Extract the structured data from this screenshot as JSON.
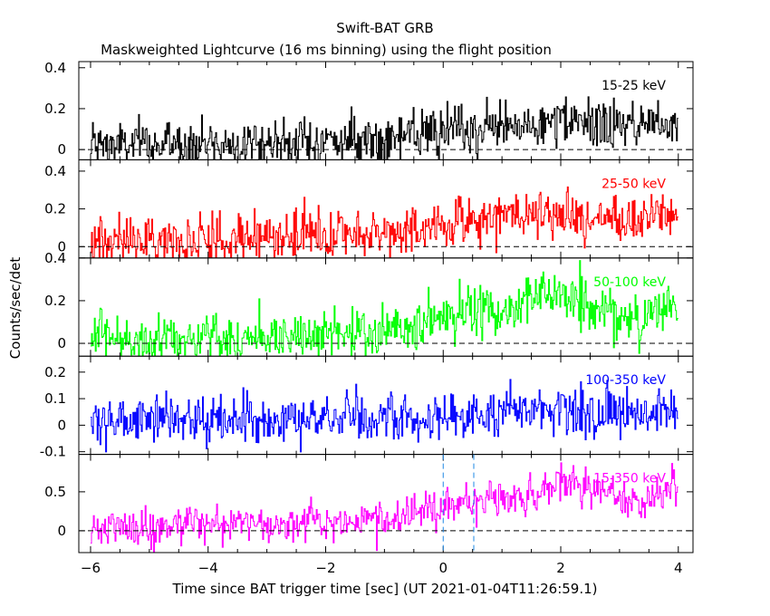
{
  "chart_data": {
    "type": "line",
    "title": "Swift-BAT GRB",
    "subtitle": "Maskweighted Lightcurve (16 ms binning) using the flight position",
    "xlabel": "Time since BAT trigger time [sec] (UT 2021-01-04T11:26:59.1)",
    "ylabel": "Counts/sec/det",
    "xlim": [
      -6.2,
      4.25
    ],
    "x_ticks": [
      -6,
      -4,
      -2,
      0,
      2,
      4
    ],
    "bin_width_s": 0.016,
    "panels": [
      {
        "name": "15-25 keV",
        "color": "#000000",
        "ylim": [
          -0.05,
          0.43
        ],
        "y_ticks": [
          0,
          0.2,
          0.4
        ],
        "zero_line": true,
        "profile": [
          {
            "t": -6.0,
            "y": 0.02
          },
          {
            "t": -4.0,
            "y": 0.03
          },
          {
            "t": -2.0,
            "y": 0.04
          },
          {
            "t": -1.0,
            "y": 0.05
          },
          {
            "t": 0.0,
            "y": 0.08
          },
          {
            "t": 1.0,
            "y": 0.11
          },
          {
            "t": 2.0,
            "y": 0.13
          },
          {
            "t": 3.0,
            "y": 0.12
          },
          {
            "t": 4.0,
            "y": 0.14
          }
        ],
        "noise_sd": 0.06
      },
      {
        "name": "25-50 keV",
        "color": "#ff0000",
        "ylim": [
          -0.06,
          0.46
        ],
        "y_ticks": [
          0,
          0.2,
          0.4
        ],
        "zero_line": true,
        "profile": [
          {
            "t": -6.0,
            "y": 0.03
          },
          {
            "t": -4.0,
            "y": 0.04
          },
          {
            "t": -2.0,
            "y": 0.06
          },
          {
            "t": -0.5,
            "y": 0.08
          },
          {
            "t": 0.0,
            "y": 0.12
          },
          {
            "t": 1.0,
            "y": 0.17
          },
          {
            "t": 2.0,
            "y": 0.16
          },
          {
            "t": 3.0,
            "y": 0.14
          },
          {
            "t": 4.0,
            "y": 0.18
          }
        ],
        "noise_sd": 0.065
      },
      {
        "name": "50-100 keV",
        "color": "#00ff00",
        "ylim": [
          -0.06,
          0.4
        ],
        "y_ticks": [
          0,
          0.2,
          0.4
        ],
        "zero_line": true,
        "profile": [
          {
            "t": -6.0,
            "y": 0.02
          },
          {
            "t": -3.0,
            "y": 0.03
          },
          {
            "t": -1.0,
            "y": 0.05
          },
          {
            "t": 0.0,
            "y": 0.12
          },
          {
            "t": 1.0,
            "y": 0.16
          },
          {
            "t": 1.8,
            "y": 0.24
          },
          {
            "t": 2.5,
            "y": 0.18
          },
          {
            "t": 3.2,
            "y": 0.12
          },
          {
            "t": 4.0,
            "y": 0.17
          }
        ],
        "noise_sd": 0.06
      },
      {
        "name": "100-350 keV",
        "color": "#0000ff",
        "ylim": [
          -0.11,
          0.26
        ],
        "y_ticks": [
          -0.1,
          0,
          0.1,
          0.2
        ],
        "zero_line": false,
        "profile": [
          {
            "t": -6.0,
            "y": 0.02
          },
          {
            "t": -2.0,
            "y": 0.02
          },
          {
            "t": 0.0,
            "y": 0.03
          },
          {
            "t": 1.0,
            "y": 0.05
          },
          {
            "t": 2.0,
            "y": 0.06
          },
          {
            "t": 3.0,
            "y": 0.04
          },
          {
            "t": 4.0,
            "y": 0.05
          }
        ],
        "noise_sd": 0.045
      },
      {
        "name": "15-350 keV",
        "color": "#ff00ff",
        "ylim": [
          -0.28,
          0.98
        ],
        "y_ticks": [
          0,
          0.5
        ],
        "zero_line": true,
        "profile": [
          {
            "t": -6.0,
            "y": 0.03
          },
          {
            "t": -4.0,
            "y": 0.08
          },
          {
            "t": -2.0,
            "y": 0.12
          },
          {
            "t": -0.5,
            "y": 0.18
          },
          {
            "t": 0.0,
            "y": 0.32
          },
          {
            "t": 0.8,
            "y": 0.42
          },
          {
            "t": 1.3,
            "y": 0.33
          },
          {
            "t": 2.0,
            "y": 0.6
          },
          {
            "t": 2.8,
            "y": 0.55
          },
          {
            "t": 3.3,
            "y": 0.35
          },
          {
            "t": 3.6,
            "y": 0.42
          },
          {
            "t": 4.0,
            "y": 0.62
          }
        ],
        "noise_sd": 0.12
      }
    ],
    "markers": [
      {
        "t": 0.0,
        "color": "#1e88e5",
        "style": "dashed",
        "panel": "15-350 keV"
      },
      {
        "t": 0.52,
        "color": "#1e88e5",
        "style": "dashed",
        "panel": "15-350 keV"
      }
    ]
  }
}
